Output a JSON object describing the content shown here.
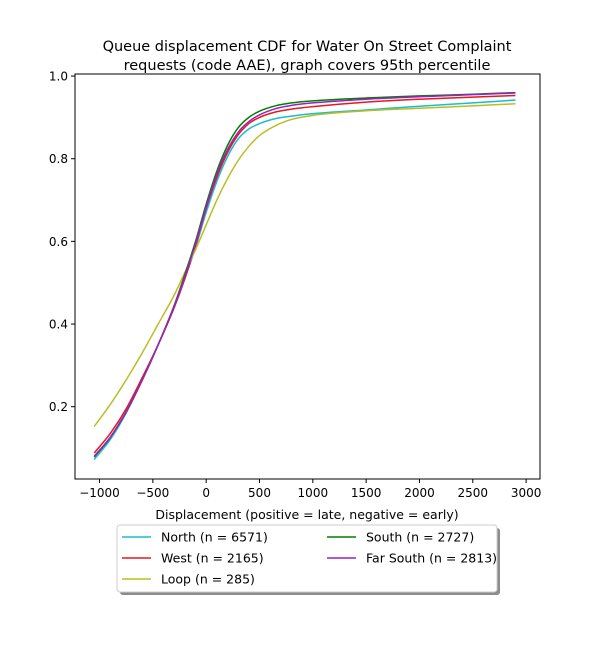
{
  "chart_data": {
    "type": "line",
    "title_lines": [
      "Queue displacement CDF for Water On Street Complaint",
      "requests (code AAE), graph covers 95th percentile"
    ],
    "xlabel": "Displacement (positive = late, negative = early)",
    "ylabel": "",
    "xlim": [
      -1230,
      3130
    ],
    "ylim": [
      0.025,
      1.005
    ],
    "xticks": [
      -1000,
      -500,
      0,
      500,
      1000,
      1500,
      2000,
      2500,
      3000
    ],
    "xtick_labels": [
      "−1000",
      "−500",
      "0",
      "500",
      "1000",
      "1500",
      "2000",
      "2500",
      "3000"
    ],
    "yticks": [
      0.2,
      0.4,
      0.6,
      0.8,
      1.0
    ],
    "ytick_labels": [
      "0.2",
      "0.4",
      "0.6",
      "0.8",
      "1.0"
    ],
    "grid": false,
    "legend_position": "bottom-center",
    "legend_columns": 2,
    "series": [
      {
        "name": "North (n = 6571)",
        "color": "#17becf",
        "x": [
          -1050,
          -900,
          -750,
          -600,
          -450,
          -300,
          -200,
          -100,
          0,
          100,
          200,
          300,
          400,
          500,
          650,
          800,
          1000,
          1500,
          2000,
          2500,
          2900
        ],
        "y": [
          0.072,
          0.12,
          0.185,
          0.265,
          0.35,
          0.44,
          0.51,
          0.585,
          0.67,
          0.745,
          0.805,
          0.848,
          0.872,
          0.885,
          0.897,
          0.903,
          0.909,
          0.918,
          0.927,
          0.935,
          0.942
        ]
      },
      {
        "name": "West (n = 2165)",
        "color": "#e41a1c",
        "x": [
          -1050,
          -900,
          -750,
          -600,
          -450,
          -300,
          -200,
          -100,
          0,
          100,
          200,
          300,
          400,
          500,
          650,
          800,
          1000,
          1500,
          2000,
          2500,
          2900
        ],
        "y": [
          0.088,
          0.135,
          0.195,
          0.27,
          0.35,
          0.44,
          0.51,
          0.59,
          0.68,
          0.755,
          0.815,
          0.858,
          0.885,
          0.9,
          0.913,
          0.92,
          0.926,
          0.937,
          0.944,
          0.949,
          0.953
        ]
      },
      {
        "name": "Loop (n = 285)",
        "color": "#bcbd22",
        "x": [
          -1050,
          -900,
          -750,
          -600,
          -450,
          -300,
          -200,
          -100,
          0,
          100,
          200,
          300,
          400,
          500,
          650,
          800,
          1000,
          1500,
          2000,
          2500,
          2900
        ],
        "y": [
          0.152,
          0.205,
          0.265,
          0.33,
          0.4,
          0.47,
          0.525,
          0.58,
          0.64,
          0.7,
          0.752,
          0.796,
          0.83,
          0.856,
          0.88,
          0.895,
          0.905,
          0.916,
          0.922,
          0.928,
          0.933
        ]
      },
      {
        "name": "South (n = 2727)",
        "color": "#008000",
        "x": [
          -1050,
          -900,
          -750,
          -600,
          -450,
          -300,
          -200,
          -100,
          0,
          100,
          200,
          300,
          400,
          500,
          650,
          800,
          1000,
          1500,
          2000,
          2500,
          2900
        ],
        "y": [
          0.078,
          0.125,
          0.187,
          0.264,
          0.35,
          0.445,
          0.52,
          0.6,
          0.69,
          0.77,
          0.832,
          0.875,
          0.9,
          0.915,
          0.928,
          0.935,
          0.94,
          0.947,
          0.952,
          0.956,
          0.96
        ]
      },
      {
        "name": "Far South (n = 2813)",
        "color": "#9b1fc4",
        "x": [
          -1050,
          -900,
          -750,
          -600,
          -450,
          -300,
          -200,
          -100,
          0,
          100,
          200,
          300,
          400,
          500,
          650,
          800,
          1000,
          1500,
          2000,
          2500,
          2900
        ],
        "y": [
          0.08,
          0.126,
          0.188,
          0.264,
          0.35,
          0.443,
          0.515,
          0.595,
          0.683,
          0.762,
          0.822,
          0.864,
          0.89,
          0.906,
          0.921,
          0.929,
          0.935,
          0.944,
          0.95,
          0.955,
          0.959
        ]
      }
    ]
  }
}
